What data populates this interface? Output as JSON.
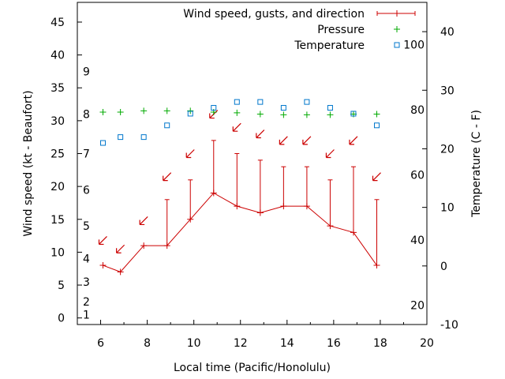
{
  "chart_data": {
    "type": "line",
    "xlabel": "Local time (Pacific/Honolulu)",
    "ylabel_left": "Wind speed (kt - Beaufort)",
    "ylabel_right": "Temperature (C - F)",
    "x_range": [
      5,
      20
    ],
    "y_left_range": [
      -1,
      48
    ],
    "y_right_range": [
      -10,
      45
    ],
    "x_ticks": [
      6,
      8,
      10,
      12,
      14,
      16,
      18,
      20
    ],
    "y_left_ticks": [
      0,
      5,
      10,
      15,
      20,
      25,
      30,
      35,
      40,
      45
    ],
    "y_right_ticks": [
      -10,
      0,
      10,
      20,
      30,
      40
    ],
    "beaufort_labels": [
      {
        "value": 1,
        "text": "1"
      },
      {
        "value": 2,
        "text": "2"
      },
      {
        "value": 3,
        "text": "3"
      },
      {
        "value": 4,
        "text": "4"
      },
      {
        "value": 5,
        "text": "5"
      },
      {
        "value": 6,
        "text": "6"
      },
      {
        "value": 7,
        "text": "7"
      },
      {
        "value": 8,
        "text": "8"
      },
      {
        "value": 9,
        "text": "9"
      }
    ],
    "fahrenheit_labels": [
      {
        "value": 20,
        "text": "20"
      },
      {
        "value": 40,
        "text": "40"
      },
      {
        "value": 60,
        "text": "60"
      },
      {
        "value": 80,
        "text": "80"
      },
      {
        "value": 100,
        "text": "100"
      }
    ],
    "legend": [
      {
        "key": "wind",
        "label": "Wind speed, gusts, and direction",
        "color": "#cc0000"
      },
      {
        "key": "pressure",
        "label": "Pressure",
        "color": "#00aa00"
      },
      {
        "key": "temperature",
        "label": "Temperature",
        "color": "#0077cc"
      }
    ],
    "wind": {
      "x": [
        6.1,
        6.85,
        7.85,
        8.85,
        9.85,
        10.85,
        11.85,
        12.85,
        13.85,
        14.85,
        15.85,
        16.85,
        17.85
      ],
      "speed": [
        8,
        7,
        11,
        11,
        15,
        19,
        17,
        16,
        17,
        17,
        14,
        13,
        8
      ],
      "gust": [
        8,
        7,
        11,
        18,
        21,
        27,
        25,
        24,
        23,
        23,
        21,
        23,
        18
      ],
      "arrow_y": [
        11.8,
        10.5,
        14.8,
        21.5,
        25,
        31,
        29,
        28,
        27,
        27,
        25,
        27,
        21.5
      ]
    },
    "pressure": {
      "x": [
        6.1,
        6.85,
        7.85,
        8.85,
        9.85,
        10.85,
        11.85,
        12.85,
        13.85,
        14.85,
        15.85,
        16.85,
        17.85
      ],
      "y": [
        31.3,
        31.3,
        31.5,
        31.5,
        31.5,
        31.3,
        31.2,
        31.0,
        30.9,
        30.9,
        30.9,
        31.0,
        31.0
      ]
    },
    "temperature": {
      "x": [
        6.1,
        6.85,
        7.85,
        8.85,
        9.85,
        10.85,
        11.85,
        12.85,
        13.85,
        14.85,
        15.85,
        16.85,
        17.85
      ],
      "y_c": [
        21,
        22,
        22,
        24,
        26,
        27,
        28,
        28,
        27,
        28,
        27,
        26,
        24
      ]
    }
  }
}
